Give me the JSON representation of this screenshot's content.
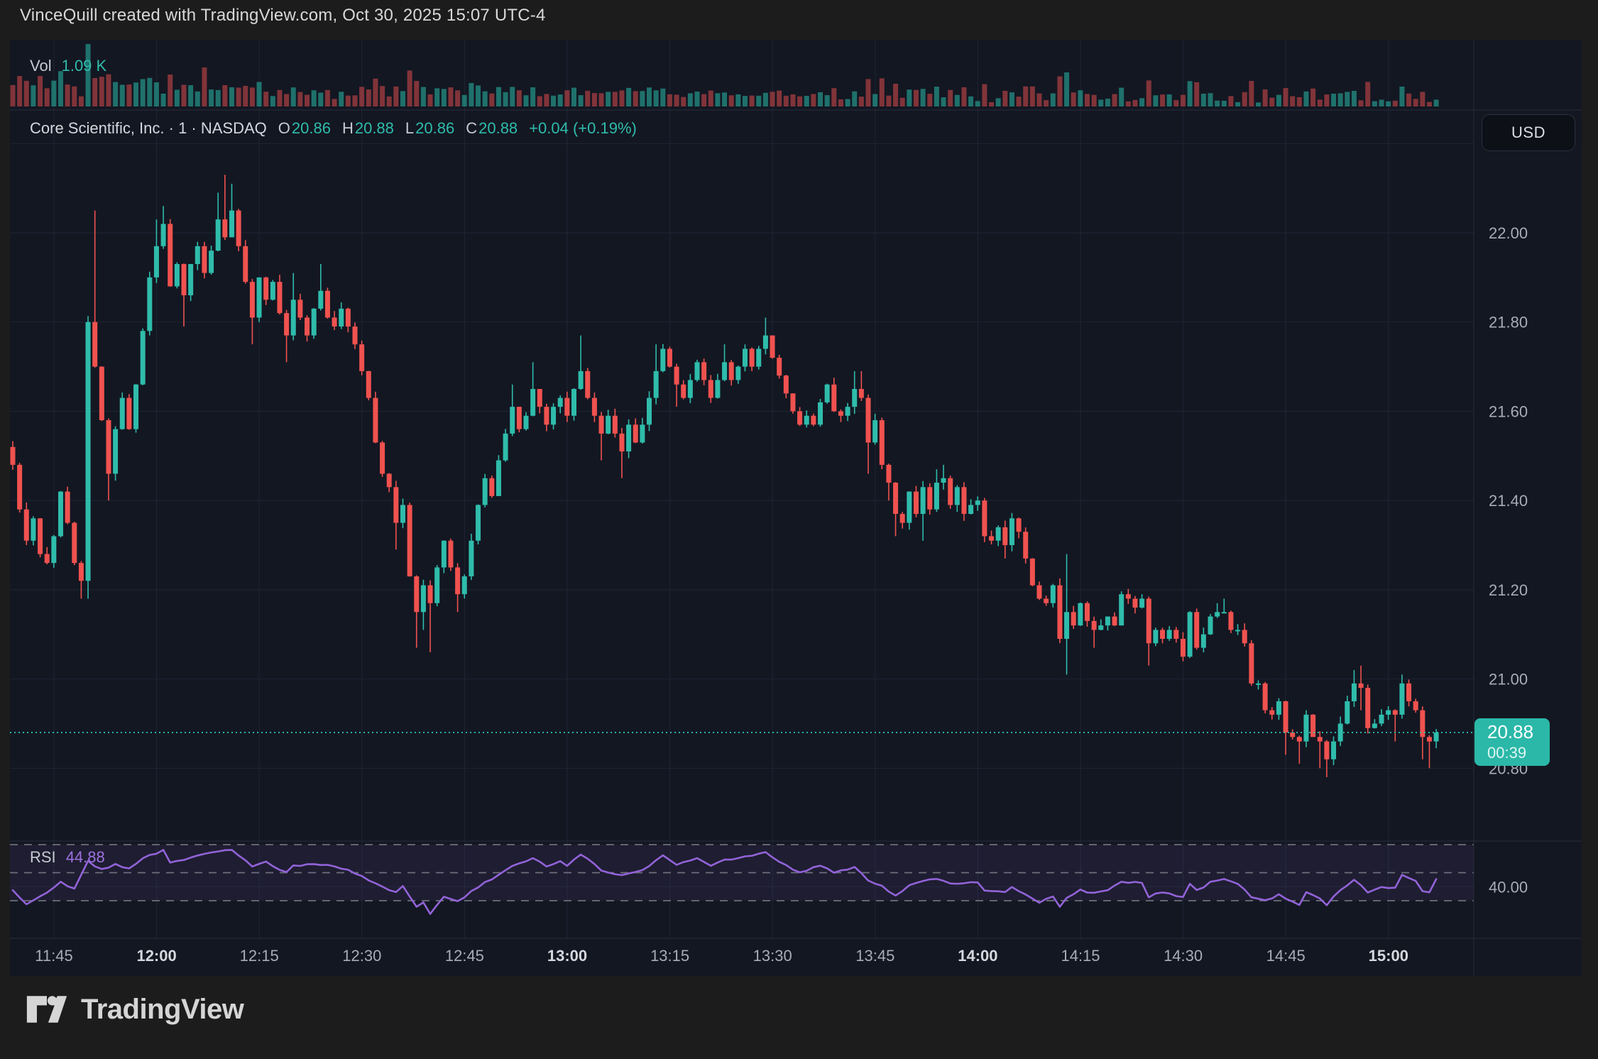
{
  "header": {
    "title": "VinceQuill created with TradingView.com, Oct 30, 2025 15:07 UTC-4"
  },
  "symbol_row": {
    "text": "Core Scientific, Inc. · 1 · NASDAQ",
    "o_label": "O",
    "o": "20.86",
    "h_label": "H",
    "h": "20.88",
    "l_label": "L",
    "l": "20.86",
    "c_label": "C",
    "c": "20.88",
    "change": "+0.04 (+0.19%)"
  },
  "volume_pane": {
    "label": "Vol",
    "value": "1.09 K"
  },
  "rsi_pane": {
    "label": "RSI",
    "value": "44.88",
    "axis_tick": "40.00"
  },
  "price_axis": {
    "currency": "USD",
    "tick_values": [
      22.0,
      21.8,
      21.6,
      21.4,
      21.2,
      21.0,
      20.8
    ],
    "grid_top_value": 22.2,
    "last_price": "20.88",
    "countdown": "00:39",
    "last_price_value": 20.88
  },
  "time_axis": {
    "ticks": [
      {
        "label": "11:45",
        "bold": false
      },
      {
        "label": "12:00",
        "bold": true
      },
      {
        "label": "12:15",
        "bold": false
      },
      {
        "label": "12:30",
        "bold": false
      },
      {
        "label": "12:45",
        "bold": false
      },
      {
        "label": "13:00",
        "bold": true
      },
      {
        "label": "13:15",
        "bold": false
      },
      {
        "label": "13:30",
        "bold": false
      },
      {
        "label": "13:45",
        "bold": false
      },
      {
        "label": "14:00",
        "bold": true
      },
      {
        "label": "14:15",
        "bold": false
      },
      {
        "label": "14:30",
        "bold": false
      },
      {
        "label": "14:45",
        "bold": false
      },
      {
        "label": "15:00",
        "bold": true
      }
    ]
  },
  "footer": {
    "brand": "TradingView"
  },
  "colors": {
    "background": "#131722",
    "page": "#1c1c1c",
    "grid": "#1e2534",
    "separator": "#2a2e39",
    "up": "#2fbcab",
    "down": "#f0524f",
    "vol_up": "rgba(42,187,170,0.55)",
    "vol_down": "rgba(240,82,79,0.5)",
    "rsi_line": "#9263d8",
    "rsi_band": "rgba(146,99,216,0.09)",
    "rsi_dash": "#82858f",
    "axis_text": "#a9acb6",
    "axis_text_bold": "#d6d8de",
    "badge": "#2bb8a8",
    "price_line": "#2fbcab"
  },
  "chart_data": {
    "type": "candlestick",
    "title": "Core Scientific, Inc. (NASDAQ) 1-minute candles with volume and RSI(14)",
    "x_start_time": "11:39",
    "x_end_time": "15:07",
    "interval_minutes": 1,
    "ylim": [
      20.64,
      22.29
    ],
    "price_gridlines": [
      22.2,
      22.0,
      21.8,
      21.6,
      21.4,
      21.2,
      21.0,
      20.8
    ],
    "session_high": 22.13,
    "session_low": 20.78,
    "current_price_line": 20.88,
    "last": {
      "open": 20.86,
      "high": 20.88,
      "low": 20.86,
      "close": 20.88,
      "change": 0.04,
      "change_pct": 0.19
    },
    "volume_last_k": 1.09,
    "first_open": 21.52,
    "closes": [
      21.48,
      21.38,
      21.31,
      21.36,
      21.28,
      21.26,
      21.32,
      21.42,
      21.35,
      21.26,
      21.22,
      21.8,
      21.7,
      21.58,
      21.46,
      21.56,
      21.63,
      21.56,
      21.66,
      21.78,
      21.9,
      21.97,
      22.02,
      21.88,
      21.93,
      21.86,
      21.93,
      21.97,
      21.91,
      21.96,
      22.03,
      21.99,
      22.05,
      21.97,
      21.89,
      21.81,
      21.9,
      21.85,
      21.89,
      21.82,
      21.77,
      21.85,
      21.81,
      21.77,
      21.83,
      21.87,
      21.81,
      21.79,
      21.83,
      21.79,
      21.75,
      21.69,
      21.63,
      21.53,
      21.46,
      21.43,
      21.35,
      21.39,
      21.23,
      21.15,
      21.21,
      21.17,
      21.25,
      21.31,
      21.25,
      21.19,
      21.23,
      21.31,
      21.39,
      21.45,
      21.41,
      21.49,
      21.55,
      21.61,
      21.56,
      21.59,
      21.65,
      21.61,
      21.57,
      21.61,
      21.63,
      21.59,
      21.65,
      21.69,
      21.63,
      21.59,
      21.55,
      21.59,
      21.55,
      21.51,
      21.57,
      21.53,
      21.57,
      21.63,
      21.69,
      21.74,
      21.7,
      21.66,
      21.63,
      21.67,
      21.71,
      21.67,
      21.63,
      21.67,
      21.71,
      21.67,
      21.7,
      21.74,
      21.7,
      21.74,
      21.77,
      21.72,
      21.68,
      21.64,
      21.6,
      21.57,
      21.59,
      21.57,
      21.62,
      21.66,
      21.6,
      21.59,
      21.61,
      21.65,
      21.63,
      21.53,
      21.58,
      21.48,
      21.44,
      21.37,
      21.35,
      21.42,
      21.37,
      21.43,
      21.38,
      21.44,
      21.45,
      21.39,
      21.43,
      21.37,
      21.39,
      21.4,
      21.32,
      21.31,
      21.34,
      21.3,
      21.36,
      21.33,
      21.27,
      21.21,
      21.18,
      21.17,
      21.21,
      21.09,
      21.15,
      21.12,
      21.17,
      21.13,
      21.11,
      21.12,
      21.14,
      21.12,
      21.19,
      21.18,
      21.16,
      21.18,
      21.08,
      21.11,
      21.09,
      21.11,
      21.09,
      21.05,
      21.15,
      21.07,
      21.1,
      21.14,
      21.15,
      21.15,
      21.11,
      21.11,
      21.08,
      20.99,
      20.99,
      20.93,
      20.92,
      20.95,
      20.88,
      20.87,
      20.86,
      20.92,
      20.87,
      20.86,
      20.82,
      20.86,
      20.9,
      20.95,
      20.99,
      20.98,
      20.89,
      20.9,
      20.92,
      20.93,
      20.92,
      20.99,
      20.95,
      20.93,
      20.87,
      20.86,
      20.88
    ],
    "wick_highs": {
      "12": 22.05,
      "21": 22.03,
      "22": 22.06,
      "30": 22.09,
      "31": 22.13,
      "32": 22.11,
      "41": 21.91,
      "45": 21.93,
      "73": 21.66,
      "76": 21.71,
      "83": 21.77,
      "94": 21.75,
      "104": 21.75,
      "110": 21.81,
      "123": 21.69,
      "124": 21.69,
      "135": 21.47,
      "136": 21.48,
      "154": 21.28,
      "176": 21.17,
      "177": 21.18,
      "196": 21.02,
      "197": 21.03,
      "203": 21.01
    },
    "wick_lows": {
      "10": 21.18,
      "11": 21.18,
      "14": 21.4,
      "25": 21.79,
      "35": 21.75,
      "40": 21.71,
      "56": 21.29,
      "59": 21.07,
      "60": 21.11,
      "61": 21.06,
      "65": 21.15,
      "86": 21.49,
      "89": 21.45,
      "97": 21.61,
      "125": 21.46,
      "128": 21.4,
      "129": 21.32,
      "133": 21.31,
      "145": 21.27,
      "154": 21.01,
      "158": 21.07,
      "166": 21.03,
      "186": 20.83,
      "188": 20.81,
      "191": 20.8,
      "192": 20.78,
      "197": 20.93,
      "202": 20.86,
      "206": 20.82,
      "207": 20.8
    },
    "volume_spikes": {
      "11": 82,
      "12": 40,
      "21": 34,
      "23": 45,
      "28": 55,
      "31": 30,
      "53": 32,
      "58": 48,
      "59": 36,
      "129": 32,
      "153": 34,
      "154": 48,
      "166": 24,
      "186": 26,
      "196": 22,
      "203": 28
    },
    "rsi": {
      "period": 14,
      "last": 44.88,
      "upper_band": 70,
      "middle_band": 50,
      "lower_band": 30,
      "axis_tick": 40,
      "keypoints": [
        [
          0,
          37
        ],
        [
          2,
          28
        ],
        [
          5,
          36
        ],
        [
          7,
          43
        ],
        [
          9,
          38
        ],
        [
          11,
          58
        ],
        [
          13,
          52
        ],
        [
          15,
          56
        ],
        [
          17,
          53
        ],
        [
          19,
          60
        ],
        [
          21,
          64
        ],
        [
          22,
          66
        ],
        [
          23,
          57
        ],
        [
          26,
          61
        ],
        [
          30,
          65
        ],
        [
          32,
          66
        ],
        [
          34,
          59
        ],
        [
          35,
          55
        ],
        [
          37,
          58
        ],
        [
          40,
          50
        ],
        [
          41,
          55
        ],
        [
          45,
          56
        ],
        [
          49,
          52
        ],
        [
          53,
          42
        ],
        [
          56,
          36
        ],
        [
          57,
          40
        ],
        [
          59,
          25
        ],
        [
          60,
          29
        ],
        [
          61,
          20
        ],
        [
          63,
          33
        ],
        [
          65,
          29
        ],
        [
          68,
          40
        ],
        [
          71,
          48
        ],
        [
          73,
          55
        ],
        [
          76,
          60
        ],
        [
          78,
          55
        ],
        [
          80,
          58
        ],
        [
          81,
          55
        ],
        [
          83,
          63
        ],
        [
          86,
          52
        ],
        [
          89,
          48
        ],
        [
          92,
          52
        ],
        [
          95,
          62
        ],
        [
          97,
          56
        ],
        [
          100,
          60
        ],
        [
          102,
          55
        ],
        [
          104,
          59
        ],
        [
          107,
          61
        ],
        [
          110,
          65
        ],
        [
          113,
          55
        ],
        [
          115,
          50
        ],
        [
          118,
          55
        ],
        [
          120,
          50
        ],
        [
          123,
          54
        ],
        [
          125,
          44
        ],
        [
          127,
          40
        ],
        [
          129,
          34
        ],
        [
          131,
          41
        ],
        [
          135,
          46
        ],
        [
          137,
          42
        ],
        [
          141,
          43
        ],
        [
          142,
          37
        ],
        [
          145,
          36
        ],
        [
          146,
          40
        ],
        [
          148,
          34
        ],
        [
          150,
          29
        ],
        [
          152,
          33
        ],
        [
          153,
          26
        ],
        [
          154,
          32
        ],
        [
          156,
          38
        ],
        [
          158,
          35
        ],
        [
          160,
          38
        ],
        [
          162,
          43
        ],
        [
          165,
          43
        ],
        [
          166,
          33
        ],
        [
          168,
          36
        ],
        [
          171,
          32
        ],
        [
          172,
          42
        ],
        [
          173,
          37
        ],
        [
          175,
          43
        ],
        [
          177,
          45
        ],
        [
          179,
          42
        ],
        [
          181,
          33
        ],
        [
          183,
          30
        ],
        [
          185,
          34
        ],
        [
          188,
          27
        ],
        [
          189,
          36
        ],
        [
          191,
          32
        ],
        [
          192,
          27
        ],
        [
          193,
          33
        ],
        [
          195,
          41
        ],
        [
          196,
          45
        ],
        [
          198,
          36
        ],
        [
          200,
          40
        ],
        [
          202,
          39
        ],
        [
          203,
          49
        ],
        [
          205,
          44
        ],
        [
          206,
          37
        ],
        [
          207,
          36
        ],
        [
          208,
          44.88
        ]
      ]
    }
  }
}
